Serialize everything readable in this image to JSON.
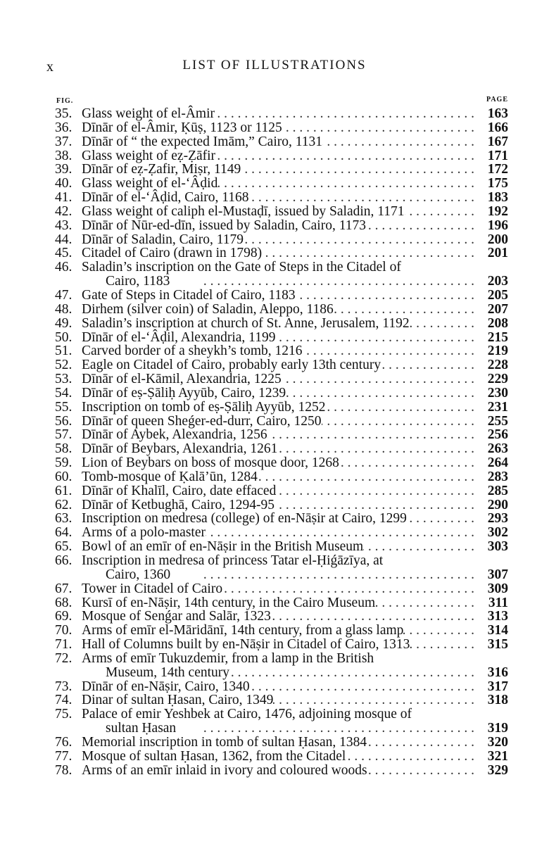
{
  "header": {
    "folio": "x",
    "title": "LIST OF ILLUSTRATIONS"
  },
  "columns": {
    "fig": "FIG.",
    "page": "PAGE"
  },
  "entries": [
    {
      "num": "35.",
      "text": "Glass weight of el-Âmir",
      "page": "163"
    },
    {
      "num": "36.",
      "text": "Dīnār of el-Âmir, Ḳūṣ, 1123 or 1125",
      "page": "166"
    },
    {
      "num": "37.",
      "text": "Dīnār of “ the expected Imām,” Cairo, 1131",
      "page": "167"
    },
    {
      "num": "38.",
      "text": "Glass weight of eẓ-Ẓāfir",
      "page": "171"
    },
    {
      "num": "39.",
      "text": "Dīnār of eẓ-Ẓafir, Miṣr, 1149",
      "page": "172"
    },
    {
      "num": "40.",
      "text": "Glass weight of el-‘Âḍid",
      "page": "175"
    },
    {
      "num": "41.",
      "text": "Dīnār of el-‘Âḍid, Cairo, 1168",
      "page": "183"
    },
    {
      "num": "42.",
      "text": "Glass weight of caliph el-Mustaḍī, issued by Saladin, 1171",
      "page": "192"
    },
    {
      "num": "43.",
      "text": "Dīnār of Nūr-ed-dīn, issued by Saladin, Cairo, 1173",
      "page": "196"
    },
    {
      "num": "44.",
      "text": "Dīnār of Saladin, Cairo, 1179",
      "page": "200"
    },
    {
      "num": "45.",
      "text": "Citadel of Cairo (drawn in 1798)",
      "page": "201"
    },
    {
      "num": "46.",
      "text": "Saladin’s inscription on the Gate of Steps in the Citadel of",
      "cont": "Cairo, 1183",
      "page": "203"
    },
    {
      "num": "47.",
      "text": "Gate of Steps in Citadel of Cairo, 1183",
      "page": "205"
    },
    {
      "num": "48.",
      "text": "Dirhem (silver coin) of Saladin, Aleppo, 1186",
      "page": "207"
    },
    {
      "num": "49.",
      "text": "Saladin’s inscription at church of St. Anne, Jerusalem, 1192",
      "page": "208"
    },
    {
      "num": "50.",
      "text": "Dīnār of el-‘Âḍil, Alexandria, 1199",
      "page": "215"
    },
    {
      "num": "51.",
      "text": "Carved border of a sheykh’s tomb, 1216",
      "page": "219"
    },
    {
      "num": "52.",
      "text": "Eagle on Citadel of Cairo, probably early 13th century",
      "page": "228"
    },
    {
      "num": "53.",
      "text": "Dīnār of el-Kāmil, Alexandria, 1225",
      "page": "229"
    },
    {
      "num": "54.",
      "text": "Dīnār of eṣ-Ṣāliḥ Ayyūb, Cairo, 1239",
      "page": "230"
    },
    {
      "num": "55.",
      "text": "Inscription on tomb of eṣ-Ṣāliḥ Ayyūb, 1252",
      "page": "231"
    },
    {
      "num": "56.",
      "text": "Dīnār of queen Sheǵer-ed-durr, Cairo, 1250",
      "page": "255"
    },
    {
      "num": "57.",
      "text": "Dīnār of Aybek, Alexandria, 1256",
      "page": "256"
    },
    {
      "num": "58.",
      "text": "Dīnār of Beybars, Alexandria, 1261",
      "page": "263"
    },
    {
      "num": "59.",
      "text": "Lion of Beybars on boss of mosque door, 1268",
      "page": "264"
    },
    {
      "num": "60.",
      "text": "Tomb-mosque of Ḳalā’ūn, 1284",
      "page": "283"
    },
    {
      "num": "61.",
      "text": "Dīnār of Khalīl, Cairo, date effaced",
      "page": "285"
    },
    {
      "num": "62.",
      "text": "Dīnār of Ketbughā, Cairo, 1294-95",
      "page": "290"
    },
    {
      "num": "63.",
      "text": "Inscription on medresa (college) of en-Nāṣir at Cairo, 1299",
      "page": "293"
    },
    {
      "num": "64.",
      "text": "Arms of a polo-master",
      "page": "302"
    },
    {
      "num": "65.",
      "text": "Bowl of an emīr of en-Nāṣir in the British Museum",
      "page": "303"
    },
    {
      "num": "66.",
      "text": "Inscription in medresa of princess Tatar el-Ḥiǵāzīya, at",
      "cont": "Cairo, 1360",
      "page": "307"
    },
    {
      "num": "67.",
      "text": "Tower in Citadel of Cairo",
      "page": "309"
    },
    {
      "num": "68.",
      "text": "Kursī of en-Nāṣir, 14th century, in the Cairo Museum",
      "page": "311"
    },
    {
      "num": "69.",
      "text": "Mosque of Senǵar and Salār, 1323",
      "page": "313"
    },
    {
      "num": "70.",
      "text": "Arms of emīr el-Māridānī, 14th century, from a glass lamp",
      "page": "314"
    },
    {
      "num": "71.",
      "text": "Hall of Columns built by en-Nāṣir in Citadel of Cairo, 1313",
      "page": "315"
    },
    {
      "num": "72.",
      "text": "Arms of emīr Tukuzdemir, from a lamp in the British",
      "cont": "Museum, 14th century",
      "page": "316"
    },
    {
      "num": "73.",
      "text": "Dīnār of en-Nāṣir, Cairo, 1340",
      "page": "317"
    },
    {
      "num": "74.",
      "text": "Dinar of sultan Ḥasan, Cairo, 1349",
      "page": "318"
    },
    {
      "num": "75.",
      "text": "Palace of emir Yeshbek at Cairo, 1476, adjoining mosque of",
      "cont": "sultan Ḥasan",
      "page": "319"
    },
    {
      "num": "76.",
      "text": "Memorial inscription in tomb of sultan Ḥasan, 1384",
      "page": "320"
    },
    {
      "num": "77.",
      "text": "Mosque of sultan Ḥasan, 1362, from the Citadel",
      "page": "321"
    },
    {
      "num": "78.",
      "text": "Arms of an emīr inlaid in ivory and coloured woods",
      "page": "329"
    }
  ]
}
